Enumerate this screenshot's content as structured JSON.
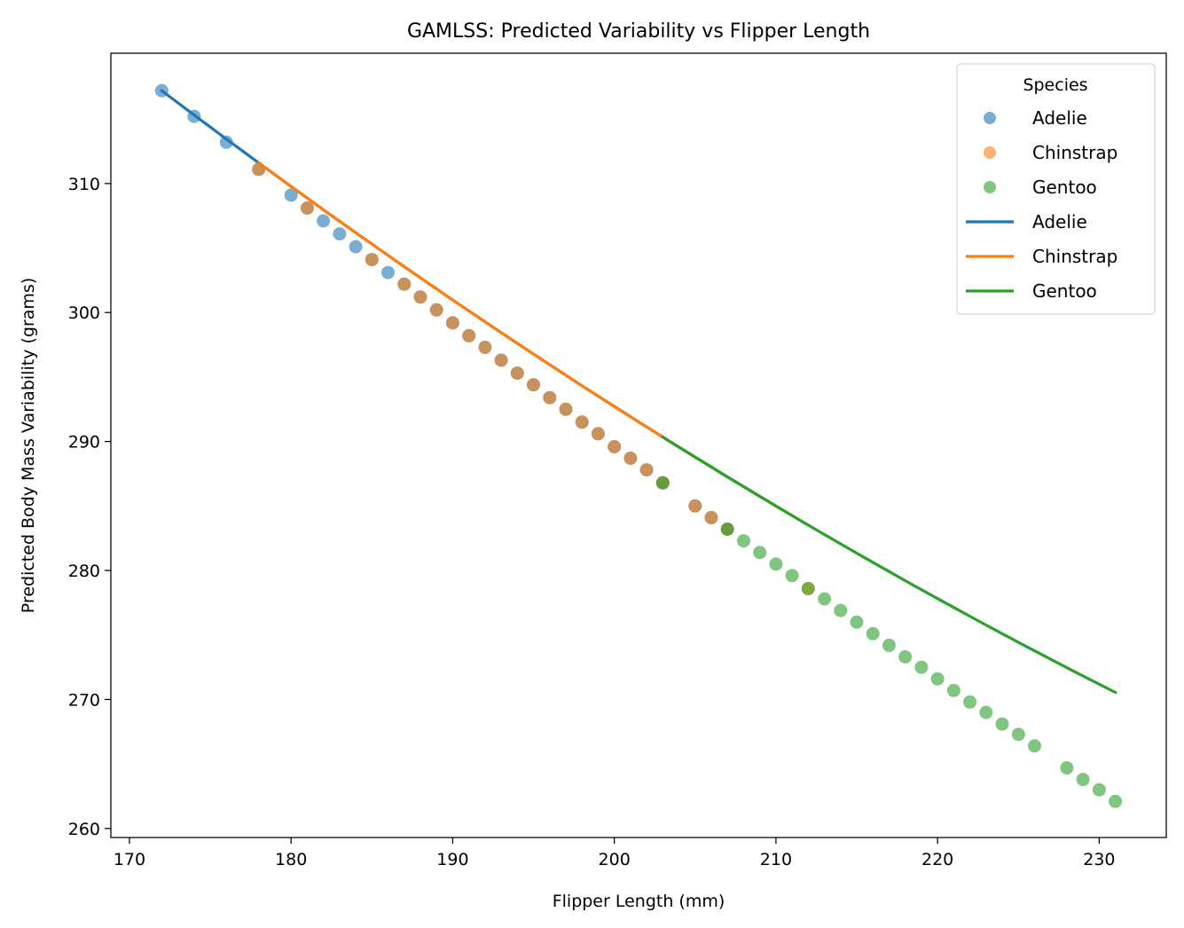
{
  "chart_data": {
    "type": "scatter",
    "title": "GAMLSS: Predicted Variability vs Flipper Length",
    "xlabel": "Flipper Length (mm)",
    "ylabel": "Predicted Body Mass Variability (grams)",
    "xlim": [
      168.85,
      234.15
    ],
    "ylim": [
      259.3,
      320.1
    ],
    "xticks": [
      170,
      180,
      190,
      200,
      210,
      220,
      230
    ],
    "yticks": [
      260,
      270,
      280,
      290,
      300,
      310
    ],
    "grid": false,
    "legend": {
      "title": "Species",
      "placement": "top-right",
      "entries": [
        {
          "label": "Adelie",
          "kind": "marker",
          "series": "Adelie"
        },
        {
          "label": "Chinstrap",
          "kind": "marker",
          "series": "Chinstrap"
        },
        {
          "label": "Gentoo",
          "kind": "marker",
          "series": "Gentoo"
        },
        {
          "label": "Adelie",
          "kind": "line",
          "series": "Adelie"
        },
        {
          "label": "Chinstrap",
          "kind": "line",
          "series": "Chinstrap"
        },
        {
          "label": "Gentoo",
          "kind": "line",
          "series": "Gentoo"
        }
      ]
    },
    "series": [
      {
        "name": "Adelie",
        "color": "#1f77b4",
        "points": [
          [
            172,
            317.2
          ],
          [
            174,
            315.2
          ],
          [
            176,
            313.2
          ],
          [
            178,
            311.1
          ],
          [
            180,
            309.1
          ],
          [
            181,
            308.1
          ],
          [
            182,
            307.1
          ],
          [
            183,
            306.1
          ],
          [
            184,
            305.1
          ],
          [
            185,
            304.1
          ],
          [
            186,
            303.1
          ],
          [
            187,
            302.2
          ],
          [
            188,
            301.2
          ],
          [
            189,
            300.2
          ],
          [
            190,
            299.2
          ],
          [
            191,
            298.2
          ],
          [
            192,
            297.3
          ],
          [
            193,
            296.3
          ],
          [
            194,
            295.3
          ],
          [
            195,
            294.4
          ],
          [
            196,
            293.4
          ],
          [
            197,
            292.5
          ],
          [
            198,
            291.5
          ],
          [
            199,
            290.6
          ],
          [
            200,
            289.6
          ],
          [
            201,
            288.7
          ],
          [
            202,
            287.8
          ],
          [
            203,
            286.8
          ],
          [
            205,
            285.0
          ],
          [
            206,
            284.1
          ],
          [
            207,
            283.2
          ]
        ],
        "line_x": [
          172,
          210
        ]
      },
      {
        "name": "Chinstrap",
        "color": "#ff7f0e",
        "points": [
          [
            178,
            311.1
          ],
          [
            181,
            308.1
          ],
          [
            185,
            304.1
          ],
          [
            187,
            302.2
          ],
          [
            188,
            301.2
          ],
          [
            189,
            300.2
          ],
          [
            190,
            299.2
          ],
          [
            191,
            298.2
          ],
          [
            192,
            297.3
          ],
          [
            193,
            296.3
          ],
          [
            194,
            295.3
          ],
          [
            195,
            294.4
          ],
          [
            196,
            293.4
          ],
          [
            197,
            292.5
          ],
          [
            198,
            291.5
          ],
          [
            199,
            290.6
          ],
          [
            200,
            289.6
          ],
          [
            201,
            288.7
          ],
          [
            202,
            287.8
          ],
          [
            203,
            286.8
          ],
          [
            205,
            285.0
          ],
          [
            206,
            284.1
          ],
          [
            207,
            283.2
          ],
          [
            212,
            278.6
          ]
        ],
        "line_x": [
          178,
          212
        ]
      },
      {
        "name": "Gentoo",
        "color": "#2ca02c",
        "points": [
          [
            203,
            286.8
          ],
          [
            207,
            283.2
          ],
          [
            208,
            282.3
          ],
          [
            209,
            281.4
          ],
          [
            210,
            280.5
          ],
          [
            211,
            279.6
          ],
          [
            212,
            278.6
          ],
          [
            213,
            277.8
          ],
          [
            214,
            276.9
          ],
          [
            215,
            276.0
          ],
          [
            216,
            275.1
          ],
          [
            217,
            274.2
          ],
          [
            218,
            273.3
          ],
          [
            219,
            272.5
          ],
          [
            220,
            271.6
          ],
          [
            221,
            270.7
          ],
          [
            222,
            269.8
          ],
          [
            223,
            269.0
          ],
          [
            224,
            268.1
          ],
          [
            225,
            267.3
          ],
          [
            226,
            266.4
          ],
          [
            228,
            264.7
          ],
          [
            229,
            263.8
          ],
          [
            230,
            263.0
          ],
          [
            231,
            262.1
          ]
        ],
        "line_x": [
          203,
          231
        ]
      }
    ]
  }
}
